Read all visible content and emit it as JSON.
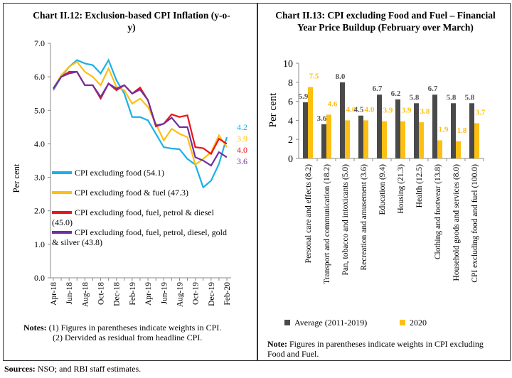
{
  "chart_data": [
    {
      "type": "line",
      "title": "Chart II.12: Exclusion-based CPI Inflation (y-o-y)",
      "ylabel": "Per cent",
      "xlabel": "",
      "ylim": [
        0,
        7
      ],
      "yticks": [
        "0.0",
        "1.0",
        "2.0",
        "3.0",
        "4.0",
        "5.0",
        "6.0",
        "7.0"
      ],
      "x": [
        "Apr-18",
        "May-18",
        "Jun-18",
        "Jul-18",
        "Aug-18",
        "Sep-18",
        "Oct-18",
        "Nov-18",
        "Dec-18",
        "Jan-19",
        "Feb-19",
        "Mar-19",
        "Apr-19",
        "May-19",
        "Jun-19",
        "Jul-19",
        "Aug-19",
        "Sep-19",
        "Oct-19",
        "Nov-19",
        "Dec-19",
        "Jan-20",
        "Feb-20"
      ],
      "xtick_labels": [
        "Apr-18",
        "Jun-18",
        "Aug-18",
        "Oct-18",
        "Dec-18",
        "Feb-19",
        "Apr-19",
        "Jun-19",
        "Aug-19",
        "Oct-19",
        "Dec-19",
        "Feb-20"
      ],
      "series": [
        {
          "name": "CPI excluding food (54.1)",
          "color": "#1ab0ea",
          "end_label": "4.2",
          "values": [
            5.6,
            6.0,
            6.3,
            6.5,
            6.4,
            6.35,
            6.1,
            6.5,
            5.9,
            5.5,
            4.8,
            4.8,
            4.7,
            4.3,
            3.9,
            3.86,
            3.84,
            3.55,
            3.38,
            2.7,
            2.9,
            3.4,
            4.2
          ]
        },
        {
          "name": "CPI excluding food & fuel (47.3)",
          "color": "#fdbf12",
          "end_label": "3.9",
          "values": [
            5.65,
            6.05,
            6.3,
            6.45,
            6.15,
            6.0,
            5.75,
            6.25,
            5.7,
            5.6,
            5.2,
            5.35,
            5.1,
            4.6,
            4.1,
            4.45,
            4.3,
            4.2,
            3.38,
            3.55,
            3.75,
            4.25,
            3.9
          ]
        },
        {
          "name": "CPI excluding food, fuel, petrol & diesel (45.0)",
          "color": "#e8161b",
          "end_label": "4.0",
          "values": [
            5.65,
            6.0,
            6.15,
            6.15,
            5.75,
            5.75,
            5.35,
            5.8,
            5.6,
            5.75,
            5.5,
            5.68,
            5.3,
            4.52,
            4.6,
            4.88,
            4.8,
            4.85,
            3.9,
            3.87,
            3.7,
            4.15,
            4.0
          ]
        },
        {
          "name": "CPI excluding food, fuel, petrol, diesel, gold & silver (43.8)",
          "color": "#7030a0",
          "end_label": "3.6",
          "values": [
            5.65,
            6.0,
            6.1,
            6.15,
            5.75,
            5.75,
            5.4,
            5.8,
            5.65,
            5.75,
            5.5,
            5.62,
            5.3,
            4.55,
            4.6,
            4.78,
            4.5,
            4.5,
            3.6,
            3.5,
            3.35,
            3.75,
            3.6
          ]
        }
      ],
      "legend": "inside-lower-left",
      "grid": false
    },
    {
      "type": "bar",
      "title": "Chart II.13: CPI excluding Food and Fuel – Financial Year Price Buildup (February over March)",
      "ylabel": "Per cent",
      "xlabel": "",
      "ylim": [
        0,
        10
      ],
      "yticks": [
        "0",
        "2",
        "4",
        "6",
        "8",
        "10"
      ],
      "categories": [
        "Personal care and effects (8.2)",
        "Transport and communication (18.2)",
        "Pan, tobacco and intoxicants (5.0)",
        "Recreation and amusement (3.6)",
        "Education (9.4)",
        "Housing (21.3)",
        "Health (12.5)",
        "Clothing and footwear (13.8)",
        "Household goods and services (8.0)",
        "CPI excluding food and fuel (100.0)"
      ],
      "series": [
        {
          "name": "Average (2011-2019)",
          "color": "#4a4a4a",
          "values": [
            5.9,
            3.6,
            8.0,
            4.5,
            6.7,
            6.2,
            5.8,
            6.7,
            5.8,
            5.8
          ],
          "labels": [
            "5.9",
            "3.6",
            "8.0",
            "4.5",
            "6.7",
            "6.2",
            "5.8",
            "6.7",
            "5.8",
            "5.8"
          ]
        },
        {
          "name": "2020",
          "color": "#fdbf12",
          "values": [
            7.5,
            4.6,
            4.0,
            4.0,
            3.9,
            3.9,
            3.8,
            1.9,
            1.8,
            3.7
          ],
          "labels": [
            "7.5",
            "4.6",
            "4.0",
            "4.0",
            "3.9",
            "3.9",
            "3.8",
            "1.9",
            "1.8",
            "3.7"
          ]
        }
      ],
      "legend": "bottom",
      "grid": false
    }
  ],
  "notes_left": {
    "line1": "Notes: (1) Figures in parentheses indicate weights in CPI.",
    "line2": "(2)  Dervided as residual from headline CPI."
  },
  "notes_right": {
    "bold": "Note:",
    "text": " Figures in parentheses indicate weights in CPI excluding Food and Fuel."
  },
  "sources": {
    "bold": "Sources:",
    "text": " NSO; and RBI staff estimates."
  }
}
